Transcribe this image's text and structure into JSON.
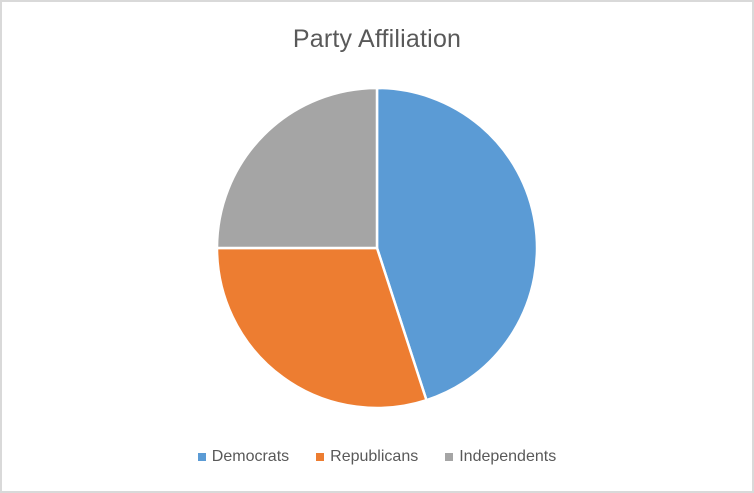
{
  "frame": {
    "background": "#FFFFFF",
    "border_color": "#D9D9D9"
  },
  "chart_data": {
    "type": "pie",
    "title": "Party Affiliation",
    "categories": [
      "Democrats",
      "Republicans",
      "Independents"
    ],
    "values": [
      45,
      30,
      25
    ],
    "colors": [
      "#5B9BD5",
      "#ED7D31",
      "#A5A5A5"
    ],
    "start_angle_deg": 0,
    "direction": "clockwise",
    "legend_position": "bottom",
    "slice_border_color": "#FFFFFF",
    "title_color": "#595959",
    "legend_text_color": "#595959",
    "grid": false,
    "data_labels": false
  }
}
